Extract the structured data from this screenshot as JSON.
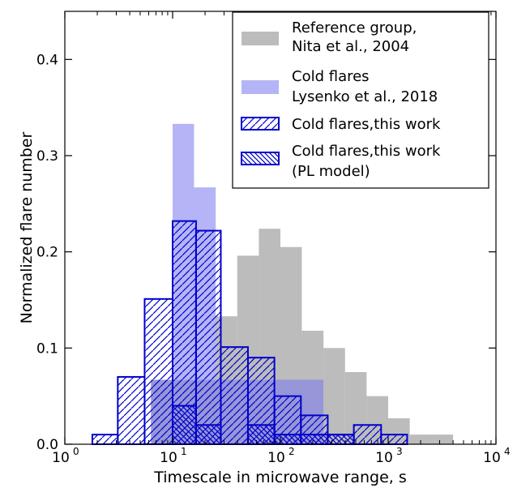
{
  "chart_data": {
    "type": "bar",
    "title": "",
    "xlabel": "Timescale in microwave range, s",
    "ylabel": "Normalized flare number",
    "x_scale": "log",
    "xlim": [
      1,
      10000
    ],
    "ylim": [
      0,
      0.45
    ],
    "grid": false,
    "legend_position": "top-right",
    "x_ticks": [
      {
        "value": 1,
        "base": "10",
        "exp": "0"
      },
      {
        "value": 10,
        "base": "10",
        "exp": "1"
      },
      {
        "value": 100,
        "base": "10",
        "exp": "2"
      },
      {
        "value": 1000,
        "base": "10",
        "exp": "3"
      },
      {
        "value": 10000,
        "base": "10",
        "exp": "4"
      }
    ],
    "y_ticks": [
      {
        "value": 0.0,
        "label": "0.0"
      },
      {
        "value": 0.1,
        "label": "0.1"
      },
      {
        "value": 0.2,
        "label": "0.2"
      },
      {
        "value": 0.3,
        "label": "0.3"
      },
      {
        "value": 0.4,
        "label": "0.4"
      }
    ],
    "series": [
      {
        "name": "Reference group,\nNita et al., 2004",
        "style": "filled",
        "color": "#a6a6a6",
        "opacity": 0.75,
        "bins": [
          {
            "x0": 6.3,
            "x1": 10,
            "y": 0.067
          },
          {
            "x0": 10,
            "x1": 15.8,
            "y": 0.067
          },
          {
            "x0": 15.8,
            "x1": 25.1,
            "y": 0.067
          },
          {
            "x0": 25.1,
            "x1": 39.8,
            "y": 0.133
          },
          {
            "x0": 39.8,
            "x1": 63.1,
            "y": 0.196
          },
          {
            "x0": 63.1,
            "x1": 100,
            "y": 0.224
          },
          {
            "x0": 100,
            "x1": 158,
            "y": 0.205
          },
          {
            "x0": 158,
            "x1": 251,
            "y": 0.118
          },
          {
            "x0": 251,
            "x1": 398,
            "y": 0.1
          },
          {
            "x0": 398,
            "x1": 631,
            "y": 0.075
          },
          {
            "x0": 631,
            "x1": 1000,
            "y": 0.05
          },
          {
            "x0": 1000,
            "x1": 1585,
            "y": 0.027
          },
          {
            "x0": 1585,
            "x1": 4000,
            "y": 0.01
          }
        ]
      },
      {
        "name": "Cold flares\nLysenko et al., 2018",
        "style": "filled",
        "color": "#7777ee",
        "opacity": 0.55,
        "bins": [
          {
            "x0": 6.3,
            "x1": 10,
            "y": 0.067
          },
          {
            "x0": 10,
            "x1": 15.8,
            "y": 0.333
          },
          {
            "x0": 15.8,
            "x1": 25.1,
            "y": 0.267
          },
          {
            "x0": 25.1,
            "x1": 39.8,
            "y": 0.067
          },
          {
            "x0": 39.8,
            "x1": 63.1,
            "y": 0.067
          },
          {
            "x0": 63.1,
            "x1": 100,
            "y": 0.067
          },
          {
            "x0": 100,
            "x1": 158,
            "y": 0.067
          },
          {
            "x0": 158,
            "x1": 251,
            "y": 0.067
          }
        ]
      },
      {
        "name": "Cold flares,this work",
        "style": "hatch-forward",
        "color": "#0000cc",
        "bins": [
          {
            "x0": 1.8,
            "x1": 3.1,
            "y": 0.01
          },
          {
            "x0": 3.1,
            "x1": 5.5,
            "y": 0.07
          },
          {
            "x0": 5.5,
            "x1": 10,
            "y": 0.151
          },
          {
            "x0": 10,
            "x1": 16.5,
            "y": 0.232
          },
          {
            "x0": 16.5,
            "x1": 28,
            "y": 0.222
          },
          {
            "x0": 28,
            "x1": 50,
            "y": 0.101
          },
          {
            "x0": 50,
            "x1": 88,
            "y": 0.09
          },
          {
            "x0": 88,
            "x1": 155,
            "y": 0.05
          },
          {
            "x0": 155,
            "x1": 275,
            "y": 0.03
          },
          {
            "x0": 275,
            "x1": 480,
            "y": 0.01
          },
          {
            "x0": 480,
            "x1": 860,
            "y": 0.02
          },
          {
            "x0": 860,
            "x1": 1500,
            "y": 0.01
          }
        ]
      },
      {
        "name": "Cold flares,this work\n(PL model)",
        "style": "hatch-back",
        "color": "#0000cc",
        "bins": [
          {
            "x0": 10,
            "x1": 16.5,
            "y": 0.04
          },
          {
            "x0": 16.5,
            "x1": 28,
            "y": 0.02
          },
          {
            "x0": 50,
            "x1": 88,
            "y": 0.02
          },
          {
            "x0": 88,
            "x1": 155,
            "y": 0.01
          },
          {
            "x0": 155,
            "x1": 275,
            "y": 0.01
          },
          {
            "x0": 275,
            "x1": 480,
            "y": 0.01
          }
        ]
      }
    ]
  }
}
